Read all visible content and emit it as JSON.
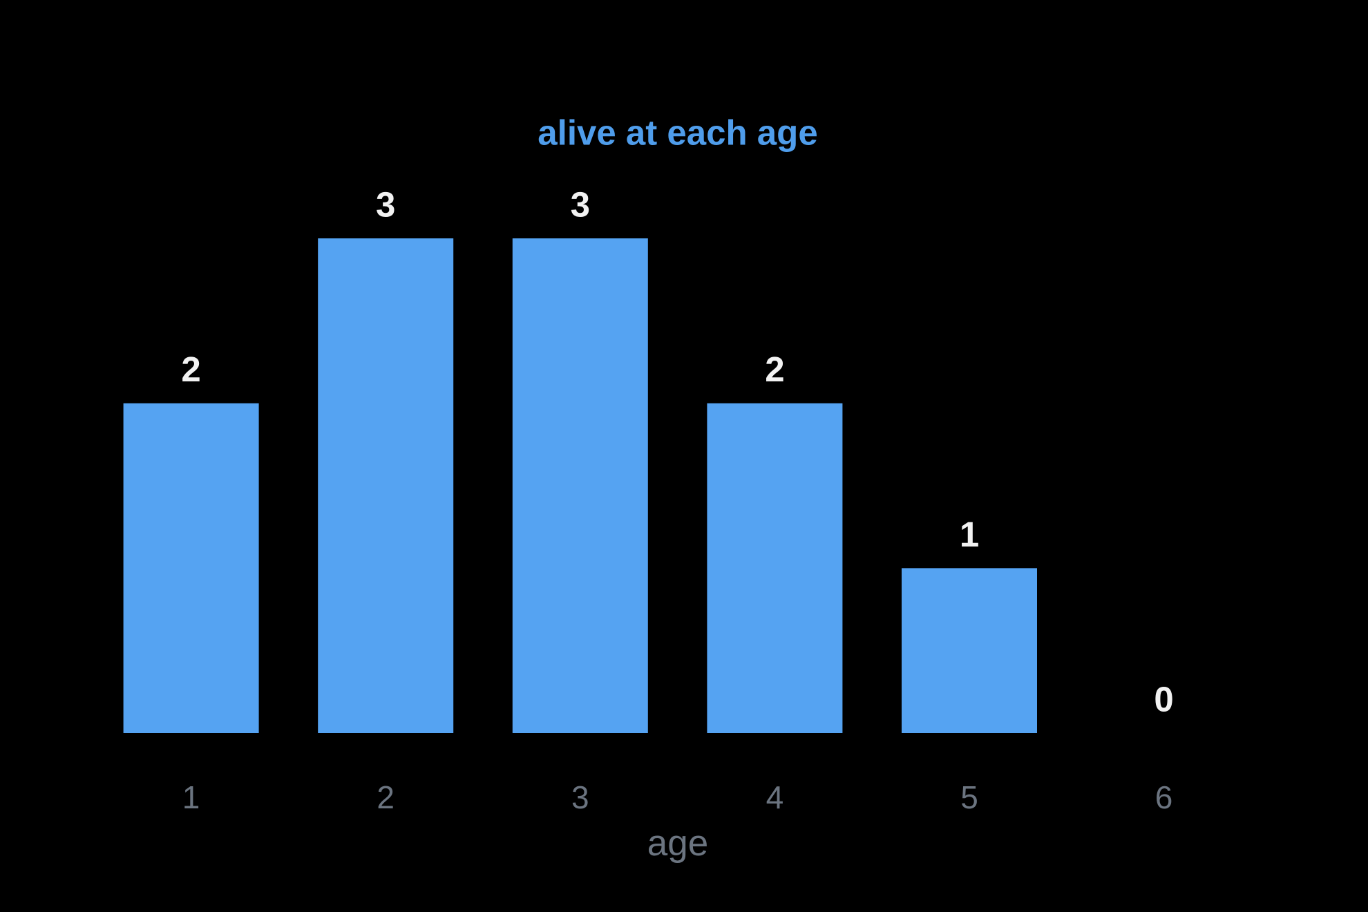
{
  "chart_data": {
    "type": "bar",
    "title": "alive at each age",
    "x_label": "age",
    "categories": [
      1,
      2,
      3,
      4,
      5,
      6
    ],
    "values": [
      2,
      3,
      3,
      2,
      1,
      0
    ],
    "color": "#55a3f2"
  }
}
